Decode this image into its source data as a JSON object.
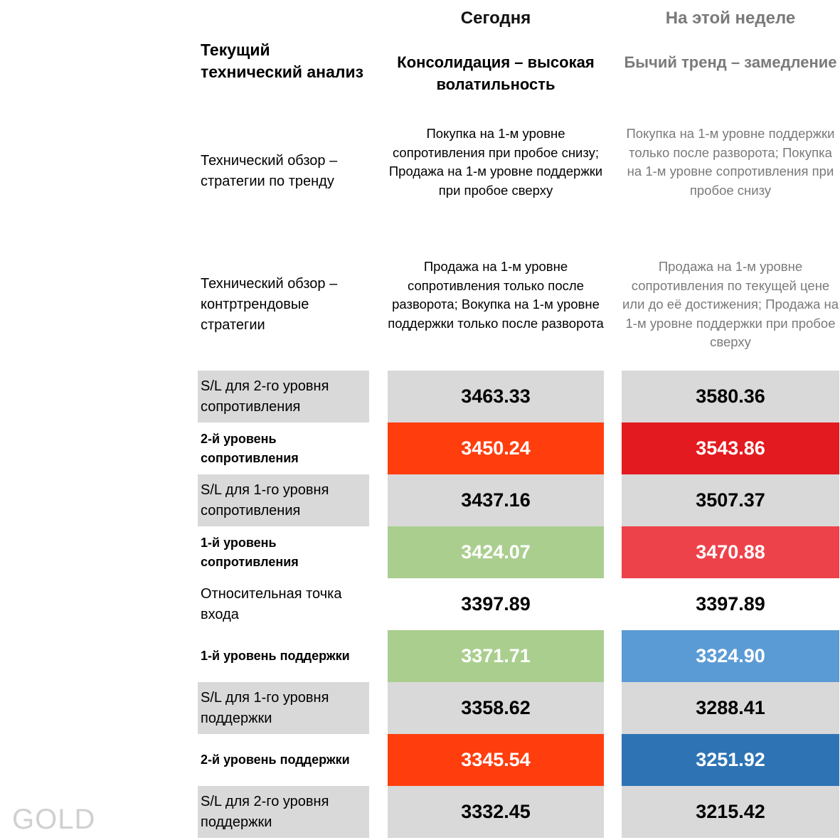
{
  "columns": {
    "today": "Сегодня",
    "week": "На этой неделе"
  },
  "main_label": "Текущий технический анализ",
  "trend": {
    "today": "Консолидация – высокая волатильность",
    "week": "Бычий тренд – замедление"
  },
  "strategies": {
    "trend": {
      "label": "Технический обзор – стратегии по тренду",
      "today": "Покупка на 1-м уровне сопротивления при пробое снизу; Продажа на 1-м уровне поддержки при пробое сверху",
      "week": "Покупка на 1-м уровне поддержки только после разворота; Покупка на 1-м уровне сопротивления при пробое снизу"
    },
    "counter": {
      "label": "Технический обзор – контртрендовые стратегии",
      "today": "Продажа на 1-м уровне сопротивления только после разворота; Вокупка на 1-м уровне поддержки только после разворота",
      "week": "Продажа на 1-м уровне сопротивления по текущей цене или до её достижения; Продажа на 1-м уровне поддержки при пробое сверху"
    }
  },
  "levels": [
    {
      "label": "S/L для 2-го уровня сопротивления",
      "bold": false,
      "today": "3463.33",
      "week": "3580.36",
      "today_bg": "#d9d9d9",
      "today_fg": "#000000",
      "week_bg": "#d9d9d9",
      "week_fg": "#000000"
    },
    {
      "label": "2-й уровень сопротивления",
      "bold": true,
      "today": "3450.24",
      "week": "3543.86",
      "today_bg": "#ff3d0d",
      "today_fg": "#ffffff",
      "week_bg": "#e31a1f",
      "week_fg": "#ffffff"
    },
    {
      "label": "S/L для 1-го уровня сопротивления",
      "bold": false,
      "today": "3437.16",
      "week": "3507.37",
      "today_bg": "#d9d9d9",
      "today_fg": "#000000",
      "week_bg": "#d9d9d9",
      "week_fg": "#000000"
    },
    {
      "label": "1-й уровень сопротивления",
      "bold": true,
      "today": "3424.07",
      "week": "3470.88",
      "today_bg": "#aace8e",
      "today_fg": "#ffffff",
      "week_bg": "#ee424a",
      "week_fg": "#ffffff"
    },
    {
      "label": "Относительная точка входа",
      "bold": false,
      "today": "3397.89",
      "week": "3397.89",
      "today_bg": "#ffffff",
      "today_fg": "#000000",
      "week_bg": "#ffffff",
      "week_fg": "#000000"
    },
    {
      "label": "1-й уровень поддержки",
      "bold": true,
      "today": "3371.71",
      "week": "3324.90",
      "today_bg": "#aace8e",
      "today_fg": "#ffffff",
      "week_bg": "#5b9bd5",
      "week_fg": "#ffffff"
    },
    {
      "label": "S/L для 1-го уровня поддержки",
      "bold": false,
      "today": "3358.62",
      "week": "3288.41",
      "today_bg": "#d9d9d9",
      "today_fg": "#000000",
      "week_bg": "#d9d9d9",
      "week_fg": "#000000"
    },
    {
      "label": "2-й уровень поддержки",
      "bold": true,
      "today": "3345.54",
      "week": "3251.92",
      "today_bg": "#ff3d0d",
      "today_fg": "#ffffff",
      "week_bg": "#2e74b5",
      "week_fg": "#ffffff"
    },
    {
      "label": "S/L для 2-го уровня поддержки",
      "bold": false,
      "today": "3332.45",
      "week": "3215.42",
      "today_bg": "#d9d9d9",
      "today_fg": "#000000",
      "week_bg": "#d9d9d9",
      "week_fg": "#000000"
    }
  ],
  "watermark": "GOLD"
}
